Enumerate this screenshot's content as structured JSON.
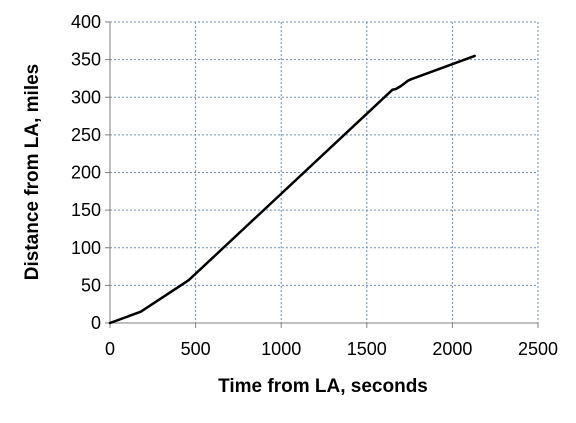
{
  "chart_data": {
    "type": "line",
    "title": "",
    "xlabel": "Time from LA, seconds",
    "ylabel": "Distance from LA, miles",
    "xlim": [
      0,
      2500
    ],
    "ylim": [
      0,
      400
    ],
    "x_ticks": [
      0,
      500,
      1000,
      1500,
      2000,
      2500
    ],
    "y_ticks": [
      0,
      50,
      100,
      150,
      200,
      250,
      300,
      350,
      400
    ],
    "grid": true,
    "legend": "none",
    "series": [
      {
        "color": "#000000",
        "x": [
          0,
          180,
          440,
          460,
          1650,
          1670,
          1700,
          1740,
          1760,
          2130
        ],
        "y": [
          0,
          15,
          54,
          57,
          310,
          311,
          315,
          322,
          324,
          355
        ]
      }
    ]
  },
  "colors": {
    "grid": "#6d8fb8",
    "axis": "#7f7f7f",
    "line": "#000000"
  }
}
